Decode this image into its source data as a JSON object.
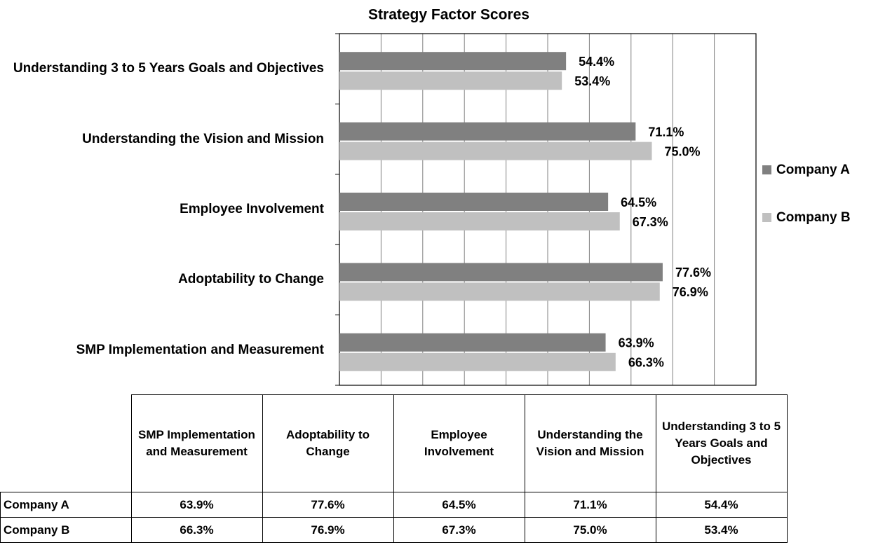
{
  "chart_data": {
    "type": "barh",
    "title": "Strategy Factor Scores",
    "categories": [
      "SMP Implementation and Measurement",
      "Adoptability to Change",
      "Employee Involvement",
      "Understanding the Vision and Mission",
      "Understanding 3 to 5 Years Goals and Objectives"
    ],
    "series": [
      {
        "name": "Company A",
        "color": "#808080",
        "values": [
          63.9,
          77.6,
          64.5,
          71.1,
          54.4
        ],
        "value_labels": [
          "63.9%",
          "77.6%",
          "64.5%",
          "71.1%",
          "54.4%"
        ]
      },
      {
        "name": "Company B",
        "color": "#c0c0c0",
        "values": [
          66.3,
          76.9,
          67.3,
          75.0,
          53.4
        ],
        "value_labels": [
          "66.3%",
          "76.9%",
          "67.3%",
          "75.0%",
          "53.4%"
        ]
      }
    ],
    "xlim": [
      0,
      100
    ],
    "xticks": [
      0,
      10,
      20,
      30,
      40,
      50,
      60,
      70,
      80,
      90,
      100
    ],
    "grid": true,
    "legend": "right",
    "data_table": true
  }
}
